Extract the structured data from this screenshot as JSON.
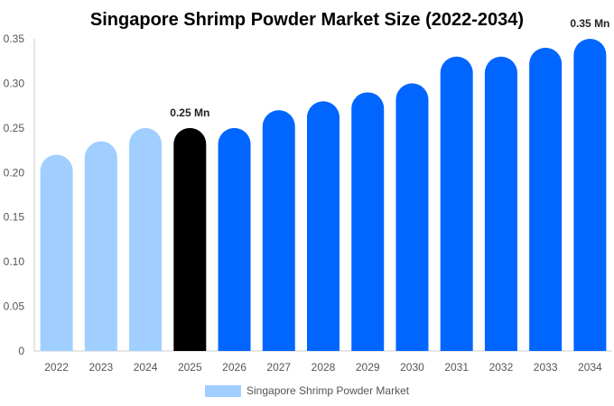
{
  "chart_data": {
    "type": "bar",
    "title": "Singapore Shrimp Powder Market Size (2022-2034)",
    "xlabel": "",
    "ylabel": "",
    "categories": [
      "2022",
      "2023",
      "2024",
      "2025",
      "2026",
      "2027",
      "2028",
      "2029",
      "2030",
      "2031",
      "2032",
      "2033",
      "2034"
    ],
    "values": [
      0.22,
      0.235,
      0.25,
      0.25,
      0.25,
      0.27,
      0.28,
      0.29,
      0.3,
      0.33,
      0.33,
      0.34,
      0.35
    ],
    "ylim": [
      0,
      0.35
    ],
    "yticks": [
      "0",
      "0.05",
      "0.10",
      "0.15",
      "0.20",
      "0.25",
      "0.30",
      "0.35"
    ],
    "ytick_values": [
      0,
      0.05,
      0.1,
      0.15,
      0.2,
      0.25,
      0.3,
      0.35
    ],
    "bar_colors": [
      "#a0cfff",
      "#a0cfff",
      "#a0cfff",
      "#000000",
      "#0066ff",
      "#0066ff",
      "#0066ff",
      "#0066ff",
      "#0066ff",
      "#0066ff",
      "#0066ff",
      "#0066ff",
      "#0066ff"
    ],
    "data_labels": [
      {
        "index": 3,
        "text": "0.25 Mn"
      },
      {
        "index": 12,
        "text": "0.35 Mn"
      }
    ],
    "grid": {
      "horizontal": false,
      "vertical": false
    },
    "legend": {
      "position": "bottom-center",
      "entries": [
        {
          "name": "Singapore Shrimp Powder Market",
          "color": "#a0cfff"
        }
      ]
    },
    "axis_color": "#cccccc"
  }
}
